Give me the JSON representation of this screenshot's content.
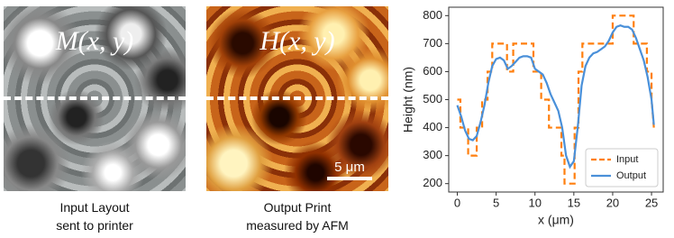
{
  "panels": [
    {
      "label": "M(x, y)",
      "caption": [
        "Input Layout",
        "sent to printer"
      ]
    },
    {
      "label": "H(x, y)",
      "caption": [
        "Output Print",
        "measured by AFM"
      ],
      "scale_bar": "5 μm"
    }
  ],
  "chart_data": {
    "type": "line",
    "xlabel": "x (μm)",
    "ylabel": "Height (nm)",
    "xlim": [
      -1.1,
      26.5
    ],
    "ylim": [
      170,
      830
    ],
    "xticks": [
      0,
      5,
      10,
      15,
      20,
      25
    ],
    "yticks": [
      200,
      300,
      400,
      500,
      600,
      700,
      800
    ],
    "legend": "lower right",
    "series": [
      {
        "name": "Input",
        "color": "#ff7f0e",
        "dashed": true,
        "x": [
          0,
          0.4,
          0.4,
          1.4,
          1.4,
          2.5,
          2.5,
          3.2,
          3.2,
          3.9,
          3.9,
          4.5,
          4.5,
          6.4,
          6.4,
          7.2,
          7.2,
          9.8,
          9.8,
          10.8,
          10.8,
          11.8,
          11.8,
          13.4,
          13.4,
          13.8,
          13.8,
          15.1,
          15.1,
          15.6,
          15.6,
          16.1,
          16.1,
          20.0,
          20.0,
          22.7,
          22.7,
          24.4,
          24.4,
          25.0,
          25.0,
          25.3
        ],
        "values": [
          500,
          500,
          400,
          400,
          300,
          300,
          400,
          400,
          500,
          500,
          600,
          600,
          700,
          700,
          600,
          600,
          700,
          700,
          600,
          600,
          500,
          500,
          400,
          400,
          300,
          300,
          200,
          200,
          400,
          400,
          600,
          600,
          700,
          700,
          800,
          800,
          700,
          700,
          600,
          600,
          500,
          400
        ]
      },
      {
        "name": "Output",
        "color": "#4a90d9",
        "dashed": false,
        "x": [
          0,
          0.5,
          1,
          1.5,
          2,
          2.5,
          3,
          3.5,
          4,
          4.5,
          5,
          5.5,
          6,
          6.5,
          7,
          7.5,
          8,
          8.5,
          9,
          9.5,
          10,
          10.5,
          11,
          11.5,
          12,
          12.5,
          13,
          13.5,
          14,
          14.5,
          15,
          15.5,
          16,
          16.5,
          17,
          17.5,
          18,
          18.5,
          19,
          19.5,
          20,
          20.5,
          21,
          21.5,
          22,
          22.5,
          23,
          23.5,
          24,
          24.5,
          25,
          25.3
        ],
        "values": [
          480,
          440,
          390,
          360,
          355,
          370,
          420,
          480,
          560,
          620,
          645,
          650,
          640,
          610,
          620,
          635,
          650,
          655,
          655,
          650,
          610,
          600,
          590,
          560,
          520,
          490,
          460,
          400,
          300,
          260,
          280,
          400,
          550,
          620,
          650,
          665,
          670,
          680,
          690,
          710,
          740,
          760,
          765,
          760,
          760,
          750,
          720,
          680,
          640,
          580,
          500,
          410
        ]
      }
    ]
  }
}
